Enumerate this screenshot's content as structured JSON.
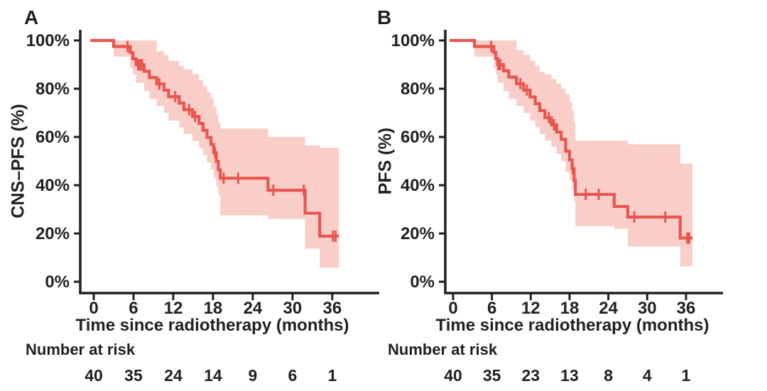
{
  "figure": {
    "background": "#ffffff",
    "colors": {
      "curve": "#e8564f",
      "band": "#f9cec9",
      "axis": "#231f20",
      "text": "#231f20"
    }
  },
  "chart_data": [
    {
      "type": "step",
      "panel": "A",
      "title": "",
      "ylabel": "CNS–PFS (%)",
      "xlabel": "Time since radiotherapy (months)",
      "xlim": [
        0,
        38
      ],
      "ylim": [
        0,
        100
      ],
      "xticks": [
        0,
        6,
        12,
        18,
        24,
        30,
        36
      ],
      "xtick_labels": [
        "0",
        "6",
        "12",
        "18",
        "24",
        "30",
        "36"
      ],
      "ytick_values": [
        0,
        20,
        40,
        60,
        80,
        100
      ],
      "ytick_labels": [
        "0%",
        "20%",
        "40%",
        "60%",
        "80%",
        "100%"
      ],
      "end_time": 37.0,
      "survival_steps": [
        [
          0,
          100,
          100,
          100
        ],
        [
          3.0,
          97.5,
          93.3,
          100
        ],
        [
          5.5,
          95.0,
          88.6,
          100
        ],
        [
          5.9,
          92.4,
          85.9,
          100
        ],
        [
          6.4,
          89.9,
          82.5,
          100
        ],
        [
          7.6,
          87.2,
          79.0,
          100
        ],
        [
          8.4,
          84.6,
          75.8,
          100
        ],
        [
          9.5,
          82.0,
          72.8,
          95.5
        ],
        [
          10.6,
          79.4,
          69.9,
          94.0
        ],
        [
          11.3,
          76.7,
          66.8,
          91.5
        ],
        [
          12.9,
          74.0,
          64.0,
          89.5
        ],
        [
          13.6,
          71.3,
          61.2,
          88.0
        ],
        [
          14.9,
          68.5,
          58.3,
          86.0
        ],
        [
          15.9,
          65.6,
          55.3,
          83.5
        ],
        [
          16.5,
          62.7,
          52.4,
          81.0
        ],
        [
          17.1,
          59.8,
          49.5,
          78.5
        ],
        [
          17.7,
          56.9,
          46.5,
          76.0
        ],
        [
          18.1,
          53.5,
          43.0,
          72.5
        ],
        [
          18.5,
          49.9,
          39.4,
          69.5
        ],
        [
          18.8,
          46.4,
          35.8,
          66.0
        ],
        [
          19.1,
          42.9,
          27.5,
          63.5
        ],
        [
          26.3,
          37.9,
          26.0,
          60.0
        ],
        [
          31.9,
          28.4,
          13.7,
          56.5
        ],
        [
          34.1,
          18.9,
          5.8,
          55.5
        ]
      ],
      "censor_marks": [
        [
          5.1,
          97.5
        ],
        [
          6.7,
          89.9
        ],
        [
          7.0,
          89.9
        ],
        [
          7.3,
          89.9
        ],
        [
          9.9,
          82.0
        ],
        [
          12.3,
          76.7
        ],
        [
          14.4,
          71.3
        ],
        [
          15.3,
          68.5
        ],
        [
          18.3,
          53.5
        ],
        [
          19.6,
          42.9
        ],
        [
          21.8,
          42.9
        ],
        [
          27.1,
          37.9
        ],
        [
          31.7,
          37.9
        ],
        [
          36.1,
          18.9
        ],
        [
          36.5,
          18.9
        ]
      ],
      "number_at_risk": {
        "label": "Number at risk",
        "times": [
          0,
          6,
          12,
          18,
          24,
          30,
          36
        ],
        "counts": [
          40,
          35,
          24,
          14,
          9,
          6,
          1
        ]
      }
    },
    {
      "type": "step",
      "panel": "B",
      "title": "",
      "ylabel": "PFS (%)",
      "xlabel": "Time since radiotherapy (months)",
      "xlim": [
        0,
        38
      ],
      "ylim": [
        0,
        100
      ],
      "xticks": [
        0,
        6,
        12,
        18,
        24,
        30,
        36
      ],
      "xtick_labels": [
        "0",
        "6",
        "12",
        "18",
        "24",
        "30",
        "36"
      ],
      "ytick_values": [
        0,
        20,
        40,
        60,
        80,
        100
      ],
      "ytick_labels": [
        "0%",
        "20%",
        "40%",
        "60%",
        "80%",
        "100%"
      ],
      "end_time": 37.0,
      "survival_steps": [
        [
          0,
          100,
          100,
          100
        ],
        [
          3.3,
          97.5,
          93.3,
          100
        ],
        [
          6.3,
          95.0,
          88.6,
          100
        ],
        [
          6.6,
          92.5,
          85.9,
          100
        ],
        [
          6.9,
          90.0,
          82.5,
          100
        ],
        [
          7.8,
          87.4,
          79.0,
          100
        ],
        [
          8.6,
          84.8,
          75.8,
          100
        ],
        [
          9.8,
          82.1,
          72.8,
          96.0
        ],
        [
          10.9,
          79.4,
          69.9,
          94.0
        ],
        [
          11.9,
          76.6,
          66.8,
          91.5
        ],
        [
          12.7,
          73.8,
          64.0,
          89.5
        ],
        [
          13.4,
          70.9,
          61.2,
          87.0
        ],
        [
          14.2,
          68.0,
          58.5,
          86.0
        ],
        [
          15.2,
          65.0,
          56.0,
          84.0
        ],
        [
          16.0,
          62.0,
          53.0,
          82.2
        ],
        [
          16.7,
          59.0,
          50.0,
          80.0
        ],
        [
          17.4,
          54.1,
          45.5,
          77.8
        ],
        [
          18.0,
          50.5,
          42.0,
          74.5
        ],
        [
          18.4,
          46.9,
          38.3,
          71.0
        ],
        [
          18.7,
          41.9,
          33.5,
          66.0
        ],
        [
          18.9,
          36.2,
          23.0,
          58.5
        ],
        [
          24.9,
          31.2,
          21.9,
          58.5
        ],
        [
          27.0,
          26.8,
          14.6,
          57.0
        ],
        [
          35.1,
          18.1,
          6.4,
          49.0
        ]
      ],
      "censor_marks": [
        [
          5.9,
          97.5
        ],
        [
          7.0,
          90.0
        ],
        [
          7.3,
          90.0
        ],
        [
          10.4,
          82.1
        ],
        [
          11.4,
          79.4
        ],
        [
          14.8,
          68.0
        ],
        [
          15.6,
          65.0
        ],
        [
          18.5,
          46.9
        ],
        [
          20.5,
          36.2
        ],
        [
          22.5,
          36.2
        ],
        [
          28.0,
          26.8
        ],
        [
          32.8,
          26.8
        ],
        [
          36.2,
          18.1
        ],
        [
          36.5,
          18.1
        ]
      ],
      "number_at_risk": {
        "label": "Number at risk",
        "times": [
          0,
          6,
          12,
          18,
          24,
          30,
          36
        ],
        "counts": [
          40,
          35,
          23,
          13,
          8,
          4,
          1
        ]
      }
    }
  ]
}
